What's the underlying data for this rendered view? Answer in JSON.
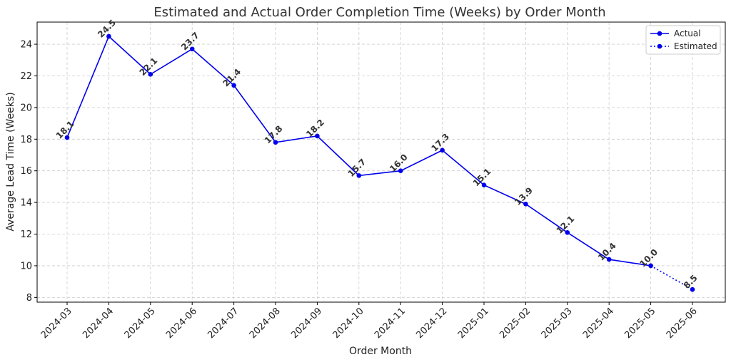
{
  "chart_data": {
    "type": "line",
    "title": "Estimated and Actual Order Completion Time (Weeks) by Order Month",
    "xlabel": "Order Month",
    "ylabel": "Average Lead Time (Weeks)",
    "categories": [
      "2024-03",
      "2024-04",
      "2024-05",
      "2024-06",
      "2024-07",
      "2024-08",
      "2024-09",
      "2024-10",
      "2024-11",
      "2024-12",
      "2025-01",
      "2025-02",
      "2025-03",
      "2025-04",
      "2025-05",
      "2025-06"
    ],
    "series": [
      {
        "name": "Actual",
        "style": "solid",
        "color": "#0000ee",
        "values": [
          18.1,
          24.5,
          22.1,
          23.7,
          21.4,
          17.8,
          18.2,
          15.7,
          16.0,
          17.3,
          15.1,
          13.9,
          12.1,
          10.4,
          10.0,
          null
        ]
      },
      {
        "name": "Estimated",
        "style": "dotted",
        "color": "#0000ee",
        "values": [
          null,
          null,
          null,
          null,
          null,
          null,
          null,
          null,
          null,
          null,
          null,
          null,
          null,
          null,
          10.0,
          8.5
        ]
      }
    ],
    "data_labels": [
      "18.1",
      "24.5",
      "22.1",
      "23.7",
      "21.4",
      "17.8",
      "18.2",
      "15.7",
      "16.0",
      "17.3",
      "15.1",
      "13.9",
      "12.1",
      "10.4",
      "10.0",
      "8.5"
    ],
    "yticks": [
      8,
      10,
      12,
      14,
      16,
      18,
      20,
      22,
      24
    ],
    "ylim": [
      7.7,
      25.4
    ],
    "grid": true,
    "legend_position": "top-right"
  }
}
